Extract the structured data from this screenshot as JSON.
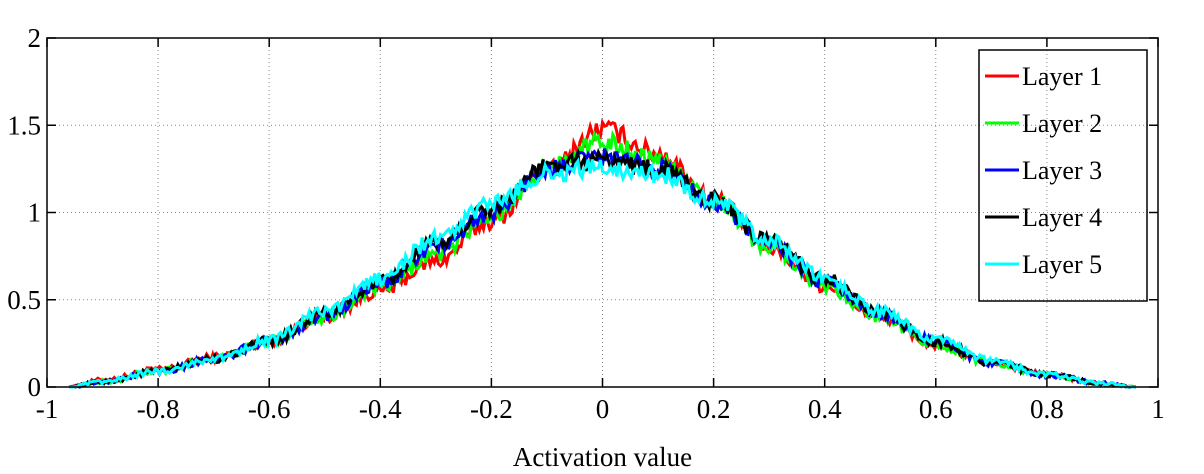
{
  "chart_data": {
    "type": "line",
    "title": "",
    "xlabel": "Activation value",
    "ylabel": "",
    "xlim": [
      -1,
      1
    ],
    "ylim": [
      0,
      2
    ],
    "x_ticks": [
      -1,
      -0.8,
      -0.6,
      -0.4,
      -0.2,
      0,
      0.2,
      0.4,
      0.6,
      0.8,
      1
    ],
    "x_tick_labels": [
      "-1",
      "-0.8",
      "-0.6",
      "-0.4",
      "-0.2",
      "0",
      "0.2",
      "0.4",
      "0.6",
      "0.8",
      "1"
    ],
    "y_ticks": [
      0,
      0.5,
      1,
      1.5,
      2
    ],
    "y_tick_labels": [
      "0",
      "0.5",
      "1",
      "1.5",
      "2"
    ],
    "grid": true,
    "legend_position": "top-right",
    "x": [
      -0.96,
      -0.9,
      -0.8,
      -0.7,
      -0.6,
      -0.5,
      -0.4,
      -0.3,
      -0.2,
      -0.1,
      0,
      0.1,
      0.2,
      0.3,
      0.4,
      0.5,
      0.6,
      0.7,
      0.8,
      0.9,
      0.96
    ],
    "series": [
      {
        "name": "Layer 1",
        "color": "#ff0000",
        "values": [
          0.0,
          0.04,
          0.1,
          0.17,
          0.26,
          0.4,
          0.55,
          0.72,
          0.95,
          1.24,
          1.48,
          1.34,
          1.08,
          0.8,
          0.58,
          0.4,
          0.24,
          0.14,
          0.07,
          0.02,
          0.0
        ]
      },
      {
        "name": "Layer 2",
        "color": "#00ff00",
        "values": [
          0.0,
          0.03,
          0.09,
          0.16,
          0.26,
          0.4,
          0.57,
          0.76,
          0.98,
          1.26,
          1.4,
          1.3,
          1.07,
          0.8,
          0.58,
          0.4,
          0.24,
          0.14,
          0.07,
          0.02,
          0.0
        ]
      },
      {
        "name": "Layer 3",
        "color": "#0000ff",
        "values": [
          0.0,
          0.03,
          0.09,
          0.16,
          0.26,
          0.41,
          0.59,
          0.8,
          1.0,
          1.25,
          1.32,
          1.26,
          1.06,
          0.82,
          0.6,
          0.42,
          0.26,
          0.14,
          0.07,
          0.02,
          0.0
        ]
      },
      {
        "name": "Layer 4",
        "color": "#000000",
        "values": [
          0.0,
          0.03,
          0.09,
          0.16,
          0.26,
          0.42,
          0.6,
          0.82,
          1.03,
          1.26,
          1.3,
          1.25,
          1.07,
          0.83,
          0.62,
          0.42,
          0.26,
          0.14,
          0.07,
          0.02,
          0.0
        ]
      },
      {
        "name": "Layer 5",
        "color": "#00ffff",
        "values": [
          0.0,
          0.03,
          0.09,
          0.16,
          0.27,
          0.43,
          0.62,
          0.85,
          1.05,
          1.22,
          1.26,
          1.22,
          1.07,
          0.84,
          0.62,
          0.43,
          0.27,
          0.15,
          0.07,
          0.02,
          0.0
        ]
      }
    ]
  }
}
